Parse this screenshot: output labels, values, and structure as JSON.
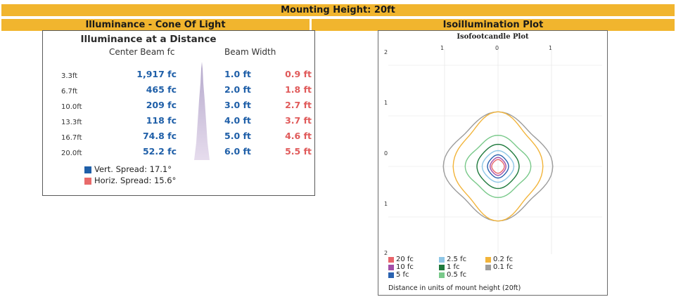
{
  "header": {
    "mounting": "Mounting Height: 20ft",
    "cone_title": "Illuminance - Cone Of Light",
    "iso_title": "Isoillumination Plot"
  },
  "cone": {
    "title": "Illuminance at a Distance",
    "col_center": "Center Beam fc",
    "col_width": "Beam Width",
    "rows": [
      {
        "distance": "3.3ft",
        "fc": "1,917 fc",
        "vert": "1.0 ft",
        "horiz": "0.9 ft"
      },
      {
        "distance": "6.7ft",
        "fc": "465 fc",
        "vert": "2.0 ft",
        "horiz": "1.8 ft"
      },
      {
        "distance": "10.0ft",
        "fc": "209 fc",
        "vert": "3.0 ft",
        "horiz": "2.7 ft"
      },
      {
        "distance": "13.3ft",
        "fc": "118 fc",
        "vert": "4.0 ft",
        "horiz": "3.7 ft"
      },
      {
        "distance": "16.7ft",
        "fc": "74.8 fc",
        "vert": "5.0 ft",
        "horiz": "4.6 ft"
      },
      {
        "distance": "20.0ft",
        "fc": "52.2 fc",
        "vert": "6.0 ft",
        "horiz": "5.5 ft"
      }
    ],
    "legend": [
      {
        "label": "Vert. Spread: 17.1°",
        "color": "#1f5fa8"
      },
      {
        "label": "Horiz. Spread: 15.6°",
        "color": "#e86a6a"
      }
    ]
  },
  "plot": {
    "title": "Isofootcandle Plot",
    "x_ticks": [
      "1",
      "0",
      "1"
    ],
    "y_ticks": [
      "2",
      "1",
      "0",
      "1",
      "2"
    ],
    "legend": [
      {
        "label": "20 fc",
        "color": "#e8656b"
      },
      {
        "label": "10 fc",
        "color": "#a24ea8"
      },
      {
        "label": "5 fc",
        "color": "#2a62b0"
      },
      {
        "label": "2.5 fc",
        "color": "#8ec6e6"
      },
      {
        "label": "1 fc",
        "color": "#1f7a3d"
      },
      {
        "label": "0.5 fc",
        "color": "#79c98a"
      },
      {
        "label": "0.2 fc",
        "color": "#f2b43a"
      },
      {
        "label": "0.1 fc",
        "color": "#9d9d9d"
      }
    ],
    "note": "Distance in units of mount height (20ft)"
  },
  "chart_data": {
    "type": "contour",
    "title": "Isofootcandle Plot",
    "xlim": [
      -1.5,
      1.5
    ],
    "ylim": [
      -2,
      2
    ],
    "grid": true,
    "legend_position": "bottom-left",
    "series": [
      {
        "name": "20 fc",
        "radius_x": 0.12,
        "radius_y": 0.13
      },
      {
        "name": "10 fc",
        "radius_x": 0.15,
        "radius_y": 0.17
      },
      {
        "name": "5 fc",
        "radius_x": 0.2,
        "radius_y": 0.22
      },
      {
        "name": "2.5 fc",
        "radius_x": 0.3,
        "radius_y": 0.3
      },
      {
        "name": "1 fc",
        "radius_x": 0.4,
        "radius_y": 0.42
      },
      {
        "name": "0.5 fc",
        "radius_x": 0.6,
        "radius_y": 0.57
      },
      {
        "name": "0.2 fc",
        "radius_x": 0.82,
        "radius_y": 1.0
      },
      {
        "name": "0.1 fc",
        "radius_x": 1.0,
        "radius_y": 1.0
      }
    ]
  }
}
